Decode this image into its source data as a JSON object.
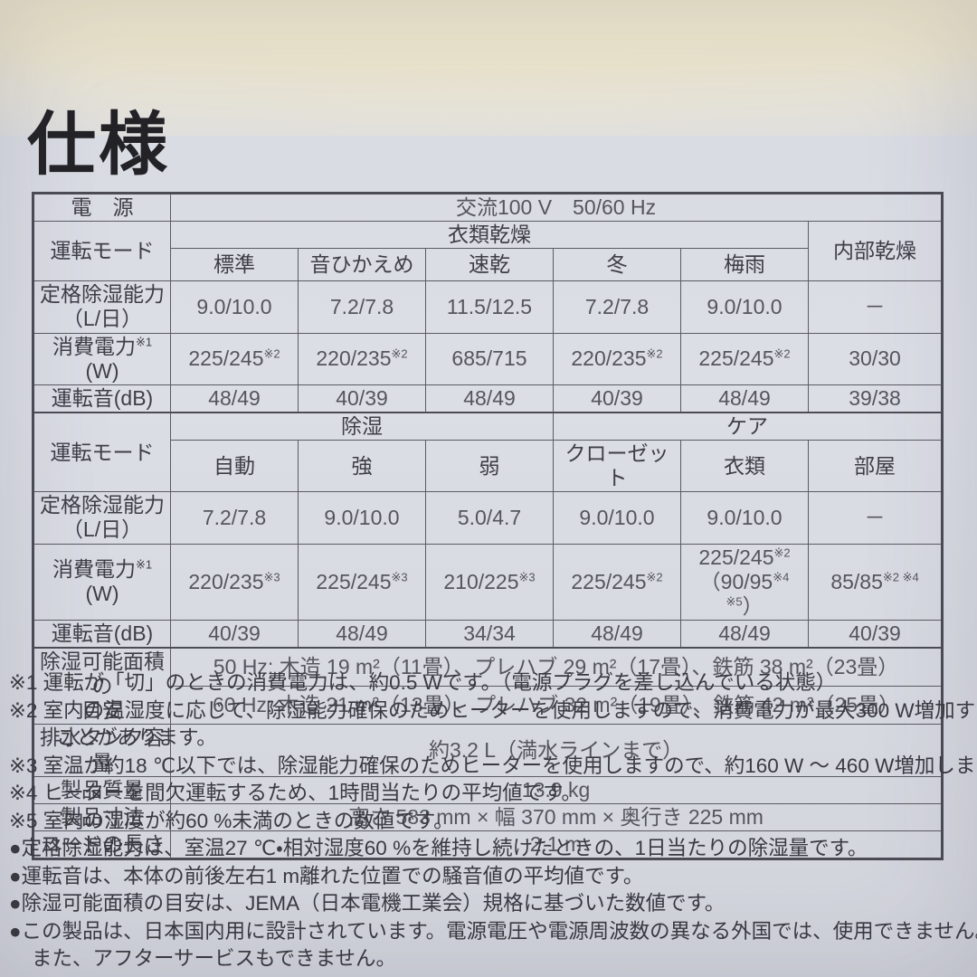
{
  "title": "仕様",
  "table": {
    "power": {
      "label": "電　源",
      "value": "交流100 V　50/60 Hz"
    },
    "section1": {
      "mode_label": "運転モード",
      "group": "衣類乾燥",
      "side": "内部乾燥",
      "modes": [
        "標準",
        "音ひかえめ",
        "速乾",
        "冬",
        "梅雨"
      ],
      "capacity": {
        "label": [
          "定格除湿能力\n（L/日）"
        ],
        "cells": [
          [
            "9.0/10.0"
          ],
          [
            "7.2/7.8"
          ],
          [
            "11.5/12.5"
          ],
          [
            "7.2/7.8"
          ],
          [
            "9.0/10.0"
          ],
          [
            "－"
          ]
        ]
      },
      "power_w": {
        "label": [
          "消費電力",
          "※1",
          " (W)"
        ],
        "cells": [
          [
            "225/245",
            "※2"
          ],
          [
            "220/235",
            "※2"
          ],
          [
            "685/715"
          ],
          [
            "220/235",
            "※2"
          ],
          [
            "225/245",
            "※2"
          ],
          [
            "30/30"
          ]
        ]
      },
      "noise": {
        "label": "運転音(dB)",
        "cells": [
          [
            "48/49"
          ],
          [
            "40/39"
          ],
          [
            "48/49"
          ],
          [
            "40/39"
          ],
          [
            "48/49"
          ],
          [
            "39/38"
          ]
        ]
      }
    },
    "section2": {
      "mode_label": "運転モード",
      "group_left": "除湿",
      "group_right": "ケア",
      "modes": [
        "自動",
        "強",
        "弱",
        "クローゼット",
        "衣類",
        "部屋"
      ],
      "capacity": {
        "label": [
          "定格除湿能力\n（L/日）"
        ],
        "cells": [
          [
            "7.2/7.8"
          ],
          [
            "9.0/10.0"
          ],
          [
            "5.0/4.7"
          ],
          [
            "9.0/10.0"
          ],
          [
            "9.0/10.0"
          ],
          [
            "－"
          ]
        ]
      },
      "power_w": {
        "label": [
          "消費電力",
          "※1",
          " (W)"
        ],
        "cells": [
          [
            "220/235",
            "※3"
          ],
          [
            "225/245",
            "※3"
          ],
          [
            "210/225",
            "※3"
          ],
          [
            "225/245",
            "※2"
          ],
          [
            "225/245",
            "※2",
            "\n（90/95",
            "※4 ※5",
            "）"
          ],
          [
            "85/85",
            "※2 ※4"
          ]
        ]
      },
      "noise": {
        "label": "運転音(dB)",
        "cells": [
          [
            "40/39"
          ],
          [
            "48/49"
          ],
          [
            "34/34"
          ],
          [
            "48/49"
          ],
          [
            "48/49"
          ],
          [
            "40/39"
          ]
        ]
      }
    },
    "area": {
      "label": [
        "除湿可能面積の\n目安"
      ],
      "hz50": "50 Hz: 木造 19 m²（11畳）、プレハブ 29 m²（17畳）、鉄筋 38 m²（23畳）",
      "hz60": "60 Hz: 木造 21 m²（13畳）、プレハブ 32 m²（19畳）、鉄筋 42 m²（25畳）"
    },
    "tank": {
      "label": "排水タンク容量",
      "value": "約3.2 L（満水ラインまで）"
    },
    "weight": {
      "label": "製品質量",
      "value": "13.9 kg"
    },
    "dimensions": {
      "label": "製品寸法",
      "value": "高さ 583 mm × 幅 370 mm × 奥行き 225 mm"
    },
    "cord": {
      "label": "コードの長さ",
      "value": "2.1 m"
    }
  },
  "footnotes": [
    {
      "text": "※1 運転が「切」のときの消費電力は、約0.5 Wです。（電源プラグを差し込んでいる状態）"
    },
    {
      "text": "※2 室内の温湿度に応じて、除湿能力確保のためヒーターを使用しますので、消費電力が最大300 W増加する"
    },
    {
      "text": "ことがあります。"
    },
    {
      "text": "※3 室温が約18 ℃以下では、除湿能力確保のためヒーターを使用しますので、約160 W ～ 460 W増加します。"
    },
    {
      "text": "※4 ヒーターを間欠運転するため、1時間当たりの平均値です。"
    },
    {
      "text": "※5 室内の湿度が約60 %未満のときの数値です。"
    },
    {
      "text": "●定格除湿能力は、室温27 ℃・相対湿度60 %を維持し続けたときの、1日当たりの除湿量です。"
    },
    {
      "text": "●運転音は、本体の前後左右1 m離れた位置での騒音値の平均値です。"
    },
    {
      "text": "●除湿可能面積の目安は、JEMA（日本電機工業会）規格に基づいた数値です。"
    },
    {
      "text": "●この製品は、日本国内用に設計されています。電源電圧や電源周波数の異なる外国では、使用できません。"
    },
    {
      "text": "また、アフターサービスもできません。"
    }
  ]
}
